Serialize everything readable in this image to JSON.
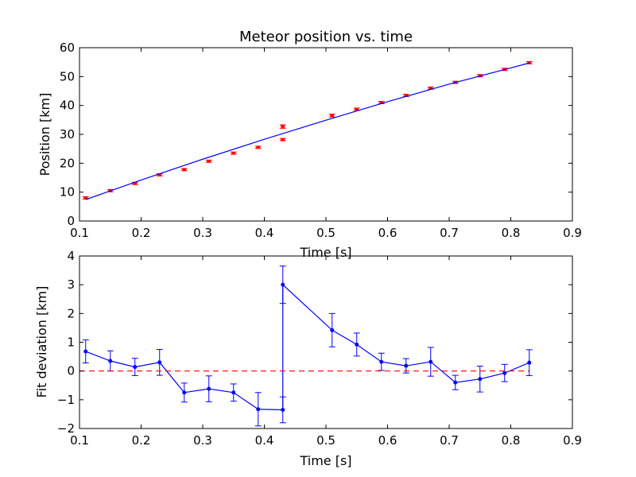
{
  "chart_data": [
    {
      "type": "scatter",
      "title": "Meteor position vs. time",
      "xlabel": "Time [s]",
      "ylabel": "Position [km]",
      "xlim": [
        0.1,
        0.9
      ],
      "ylim": [
        0,
        60
      ],
      "xticks": [
        "0.1",
        "0.2",
        "0.3",
        "0.4",
        "0.5",
        "0.6",
        "0.7",
        "0.8",
        "0.9"
      ],
      "yticks": [
        "0",
        "10",
        "20",
        "30",
        "40",
        "50",
        "60"
      ],
      "grid": false,
      "series": [
        {
          "kind": "errorbar-points",
          "color": "#ff0000",
          "x": [
            0.11,
            0.15,
            0.19,
            0.23,
            0.27,
            0.31,
            0.35,
            0.39,
            0.43,
            0.43,
            0.51,
            0.55,
            0.59,
            0.63,
            0.67,
            0.71,
            0.75,
            0.79,
            0.83
          ],
          "y": [
            8.0,
            10.5,
            13.0,
            16.0,
            17.8,
            20.7,
            23.5,
            25.5,
            32.7,
            28.2,
            36.5,
            38.7,
            41.0,
            43.5,
            46.0,
            48.0,
            50.3,
            52.5,
            54.8
          ],
          "err": [
            0.4,
            0.4,
            0.4,
            0.4,
            0.4,
            0.4,
            0.4,
            0.4,
            0.6,
            0.4,
            0.5,
            0.4,
            0.4,
            0.4,
            0.4,
            0.4,
            0.4,
            0.4,
            0.4
          ]
        },
        {
          "kind": "fit-line",
          "color": "#0000ff",
          "x": [
            0.11,
            0.2,
            0.3,
            0.4,
            0.5,
            0.6,
            0.7,
            0.8,
            0.83
          ],
          "y": [
            7.4,
            14.2,
            21.4,
            28.3,
            34.9,
            41.3,
            47.4,
            53.0,
            54.7
          ]
        }
      ]
    },
    {
      "type": "line",
      "title": "",
      "xlabel": "Time [s]",
      "ylabel": "Fit deviation [km]",
      "xlim": [
        0.1,
        0.9
      ],
      "ylim": [
        -2,
        4
      ],
      "xticks": [
        "0.1",
        "0.2",
        "0.3",
        "0.4",
        "0.5",
        "0.6",
        "0.7",
        "0.8",
        "0.9"
      ],
      "yticks": [
        "−2",
        "−1",
        "0",
        "1",
        "2",
        "3",
        "4"
      ],
      "grid": false,
      "series": [
        {
          "kind": "errorbar-line",
          "color": "#0000ff",
          "x": [
            0.11,
            0.15,
            0.19,
            0.23,
            0.27,
            0.31,
            0.35,
            0.39,
            0.43,
            0.43,
            0.51,
            0.55,
            0.59,
            0.63,
            0.67,
            0.71,
            0.75,
            0.79,
            0.83
          ],
          "y": [
            0.68,
            0.35,
            0.14,
            0.3,
            -0.75,
            -0.62,
            -0.75,
            -1.33,
            -1.35,
            3.0,
            1.42,
            0.92,
            0.32,
            0.18,
            0.32,
            -0.4,
            -0.28,
            -0.07,
            0.29
          ],
          "err": [
            0.4,
            0.35,
            0.3,
            0.45,
            0.33,
            0.45,
            0.3,
            0.58,
            0.45,
            0.65,
            0.58,
            0.4,
            0.3,
            0.25,
            0.5,
            0.25,
            0.45,
            0.3,
            0.45
          ]
        },
        {
          "kind": "reference-line",
          "color": "#ff0000",
          "dash": true,
          "x": [
            0.1,
            0.83
          ],
          "y": [
            0,
            0
          ]
        }
      ]
    }
  ]
}
